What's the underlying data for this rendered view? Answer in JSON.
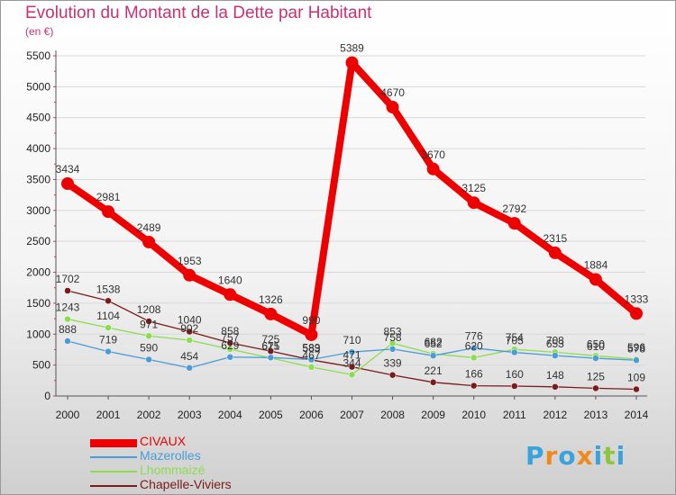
{
  "chart_data": {
    "type": "line",
    "title": "Evolution du Montant de la Dette par Habitant",
    "ylabel": "(en €)",
    "xlabel": "",
    "categories": [
      "2000",
      "2001",
      "2002",
      "2003",
      "2004",
      "2005",
      "2006",
      "2007",
      "2008",
      "2009",
      "2010",
      "2011",
      "2012",
      "2013",
      "2014"
    ],
    "yticks": [
      0,
      500,
      1000,
      1500,
      2000,
      2500,
      3000,
      3500,
      4000,
      4500,
      5000,
      5500
    ],
    "ylim": [
      0,
      5500
    ],
    "series": [
      {
        "name": "CIVAUX",
        "color": "#ee0000",
        "values": [
          3434,
          2981,
          2489,
          1953,
          1640,
          1326,
          990,
          5389,
          4670,
          3670,
          3125,
          2792,
          2315,
          1884,
          1333
        ]
      },
      {
        "name": "Mazerolles",
        "color": "#4a9cd6",
        "values": [
          888,
          719,
          590,
          454,
          629,
          621,
          589,
          710,
          758,
          652,
          776,
          705,
          653,
          610,
          578
        ]
      },
      {
        "name": "Lhommaizé",
        "color": "#8cdc50",
        "values": [
          1243,
          1104,
          971,
          902,
          757,
          615,
          467,
          344,
          853,
          682,
          620,
          754,
          708,
          650,
          596
        ]
      },
      {
        "name": "Chapelle-Viviers",
        "color": "#7a1a1a",
        "values": [
          1702,
          1538,
          1208,
          1040,
          858,
          725,
          583,
          471,
          339,
          221,
          166,
          160,
          148,
          125,
          109
        ]
      }
    ],
    "legend_position": "bottom-left"
  },
  "logo": {
    "letters": [
      "P",
      "r",
      "o",
      "x",
      "i",
      "t",
      "i"
    ],
    "colors": [
      "#3aa3dc",
      "#f08a1c",
      "#3aa3dc",
      "#f08a1c",
      "#3aa3dc",
      "#8cc63f",
      "#3aa3dc"
    ]
  }
}
